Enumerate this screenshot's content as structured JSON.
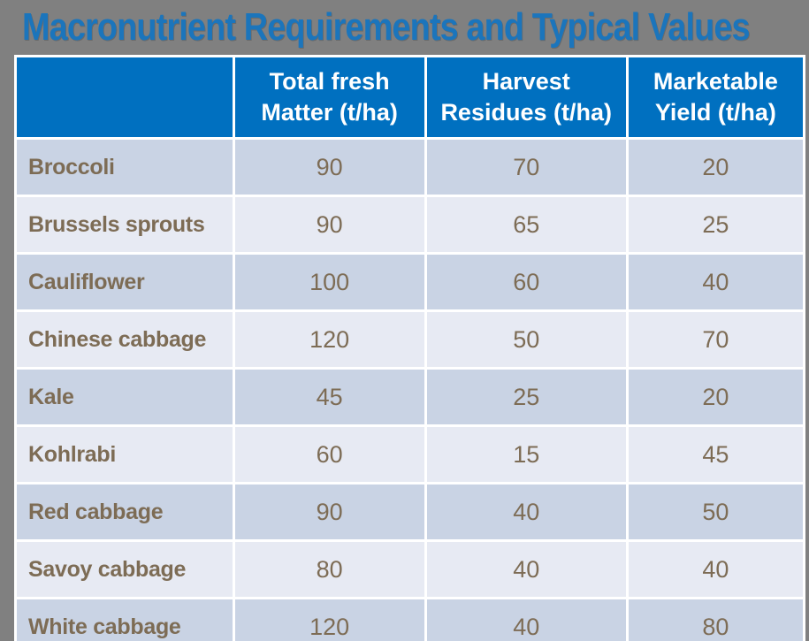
{
  "title": "Macronutrient Requirements and Typical Values",
  "colors": {
    "slide_background": "#808080",
    "title_text": "#1B75BC",
    "header_background": "#0070C0",
    "header_text": "#FFFFFF",
    "row_dark": "#C9D3E4",
    "row_light": "#E7EAF3",
    "cell_text": "#7D6C55",
    "gridline": "#FFFFFF"
  },
  "header_display": [
    "Total fresh\nMatter (t/ha)",
    "Harvest\nResidues (t/ha)",
    "Marketable\nYield (t/ha)"
  ],
  "chart_data": {
    "type": "table",
    "title": "Macronutrient Requirements and Typical Values",
    "columns": [
      "",
      "Total fresh Matter (t/ha)",
      "Harvest Residues (t/ha)",
      "Marketable Yield (t/ha)"
    ],
    "rows": [
      [
        "Broccoli",
        90,
        70,
        20
      ],
      [
        "Brussels sprouts",
        90,
        65,
        25
      ],
      [
        "Cauliflower",
        100,
        60,
        40
      ],
      [
        "Chinese cabbage",
        120,
        50,
        70
      ],
      [
        "Kale",
        45,
        25,
        20
      ],
      [
        "Kohlrabi",
        60,
        15,
        45
      ],
      [
        "Red cabbage",
        90,
        40,
        50
      ],
      [
        "Savoy cabbage",
        80,
        40,
        40
      ],
      [
        "White cabbage",
        120,
        40,
        80
      ]
    ]
  }
}
